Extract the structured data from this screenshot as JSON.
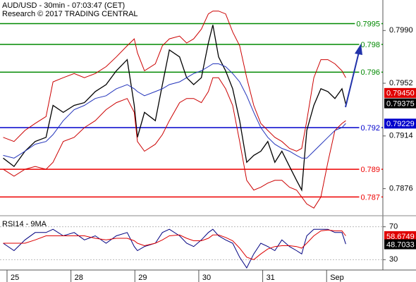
{
  "chart_data": [
    {
      "type": "line",
      "title": "AUD/USD - 30min - 07:03:47 (CET)",
      "subtitle": "Research © 2017 TRADING CENTRAL",
      "xlim": [
        -0.11,
        5.88
      ],
      "ylim": [
        0.7857,
        0.8012
      ],
      "yticks": [
        {
          "value": 0.799,
          "label": "0.7990"
        },
        0.7952,
        0.7914,
        0.7876
      ],
      "x": [
        -0.06,
        0.11,
        0.28,
        0.44,
        0.61,
        0.72,
        0.88,
        1.05,
        1.21,
        1.38,
        1.55,
        1.71,
        1.88,
        1.99,
        2.04,
        2.15,
        2.32,
        2.43,
        2.54,
        2.7,
        2.81,
        2.92,
        3.04,
        3.15,
        3.22,
        3.31,
        3.42,
        3.53,
        3.64,
        3.75,
        3.86,
        3.97,
        4.08,
        4.19,
        4.3,
        4.42,
        4.53,
        4.61,
        4.69,
        4.8,
        4.91,
        5.02,
        5.13,
        5.24,
        5.3
      ],
      "series": [
        {
          "color": "#000000",
          "values": [
            0.7898,
            0.7892,
            0.7903,
            0.791,
            0.7913,
            0.7936,
            0.7931,
            0.7936,
            0.7938,
            0.7946,
            0.7951,
            0.7961,
            0.7969,
            0.7936,
            0.7913,
            0.7931,
            0.7925,
            0.7951,
            0.7976,
            0.7971,
            0.7956,
            0.7951,
            0.7956,
            0.7981,
            0.7994,
            0.7971,
            0.7961,
            0.7948,
            0.7925,
            0.7895,
            0.79,
            0.7903,
            0.791,
            0.7895,
            0.7903,
            0.7892,
            0.7882,
            0.7875,
            0.7918,
            0.7936,
            0.7948,
            0.7946,
            0.7941,
            0.7948,
            0.7937
          ]
        },
        {
          "color": "#cc0000",
          "values": [
            0.7913,
            0.791,
            0.7918,
            0.7923,
            0.7928,
            0.7953,
            0.7956,
            0.7959,
            0.7956,
            0.7959,
            0.7964,
            0.7971,
            0.7979,
            0.7984,
            0.7974,
            0.7961,
            0.7966,
            0.7979,
            0.7984,
            0.7986,
            0.7981,
            0.7984,
            0.7991,
            0.8002,
            0.8004,
            0.8004,
            0.8002,
            0.7989,
            0.7979,
            0.7956,
            0.7936,
            0.7923,
            0.7918,
            0.7913,
            0.791,
            0.7905,
            0.7903,
            0.7905,
            0.7925,
            0.7956,
            0.7969,
            0.7969,
            0.7966,
            0.7961,
            0.7956
          ]
        },
        {
          "color": "#cc0000",
          "values": [
            0.789,
            0.7885,
            0.789,
            0.7892,
            0.789,
            0.7895,
            0.791,
            0.7913,
            0.792,
            0.7925,
            0.7933,
            0.7938,
            0.7941,
            0.7931,
            0.791,
            0.7903,
            0.7908,
            0.7915,
            0.7925,
            0.7938,
            0.7941,
            0.7941,
            0.7938,
            0.7946,
            0.7956,
            0.7956,
            0.7948,
            0.7936,
            0.791,
            0.7882,
            0.7875,
            0.7877,
            0.788,
            0.7882,
            0.7882,
            0.7877,
            0.7875,
            0.787,
            0.7865,
            0.7862,
            0.787,
            0.7895,
            0.7918,
            0.7923,
            0.7925
          ]
        },
        {
          "color": "#2233bb",
          "values": [
            0.79,
            0.7898,
            0.7903,
            0.7908,
            0.791,
            0.7915,
            0.7925,
            0.7933,
            0.7936,
            0.7941,
            0.7943,
            0.7948,
            0.7951,
            0.7948,
            0.7946,
            0.7943,
            0.7946,
            0.7948,
            0.7951,
            0.7953,
            0.7956,
            0.7959,
            0.7961,
            0.7964,
            0.7966,
            0.7966,
            0.7964,
            0.7959,
            0.7953,
            0.7943,
            0.7931,
            0.792,
            0.7913,
            0.7908,
            0.7905,
            0.7903,
            0.79,
            0.7898,
            0.7898,
            0.7903,
            0.7908,
            0.7913,
            0.7918,
            0.792,
            0.7923
          ]
        }
      ],
      "levels": [
        {
          "value": 0.7995,
          "color": "#008800"
        },
        {
          "value": 0.798,
          "color": "#008800"
        },
        {
          "value": 0.796,
          "color": "#008800"
        },
        {
          "value": 0.792,
          "color": "#0000cc"
        },
        {
          "value": 0.789,
          "color": "#ee0000"
        },
        {
          "value": 0.787,
          "color": "#ee0000"
        }
      ],
      "markers": [
        {
          "value": 0.7945,
          "label": "0.79450",
          "color": "#e00000"
        },
        {
          "value": 0.79375,
          "label": "0.79375",
          "color": "#000000"
        },
        {
          "value": 0.79229,
          "label": "0.79229",
          "color": "#0000cc"
        }
      ]
    },
    {
      "type": "line",
      "title": "RSI14 - 9MA",
      "xlim": [
        -0.11,
        5.88
      ],
      "ylim": [
        20,
        80
      ],
      "yticks": [
        70,
        30
      ],
      "xticks": [
        {
          "value": 0,
          "label": "25"
        },
        {
          "value": 1,
          "label": "28"
        },
        {
          "value": 2,
          "label": "29"
        },
        {
          "value": 3,
          "label": "30"
        },
        {
          "value": 4,
          "label": "31"
        },
        {
          "value": 5,
          "label": "Sep"
        }
      ],
      "x": [
        -0.06,
        0.11,
        0.28,
        0.44,
        0.61,
        0.72,
        0.88,
        1.05,
        1.21,
        1.38,
        1.55,
        1.71,
        1.88,
        1.99,
        2.04,
        2.15,
        2.32,
        2.43,
        2.54,
        2.7,
        2.81,
        2.92,
        3.04,
        3.15,
        3.22,
        3.31,
        3.42,
        3.53,
        3.64,
        3.75,
        3.86,
        3.97,
        4.08,
        4.19,
        4.3,
        4.42,
        4.53,
        4.61,
        4.69,
        4.8,
        4.91,
        5.02,
        5.13,
        5.24,
        5.3
      ],
      "series": [
        {
          "color": "#000080",
          "values": [
            50,
            41,
            54,
            63,
            63,
            67,
            59,
            63,
            54,
            59,
            50,
            59,
            63,
            46,
            41,
            46,
            50,
            63,
            67,
            59,
            50,
            46,
            54,
            63,
            67,
            59,
            54,
            50,
            33,
            20,
            37,
            50,
            46,
            41,
            54,
            46,
            41,
            37,
            59,
            67,
            67,
            67,
            63,
            63,
            49
          ]
        },
        {
          "color": "#dd0000",
          "values": [
            50,
            50,
            50,
            54,
            59,
            59,
            59,
            59,
            59,
            56,
            54,
            56,
            56,
            53,
            50,
            47,
            50,
            54,
            59,
            60,
            56,
            53,
            53,
            56,
            60,
            60,
            57,
            53,
            44,
            33,
            30,
            37,
            43,
            46,
            47,
            47,
            46,
            44,
            50,
            59,
            65,
            66,
            65,
            65,
            59
          ]
        }
      ],
      "markers": [
        {
          "value": 58.6749,
          "color": "#e00000"
        },
        {
          "value": 48.7033,
          "color": "#000000"
        }
      ]
    }
  ]
}
